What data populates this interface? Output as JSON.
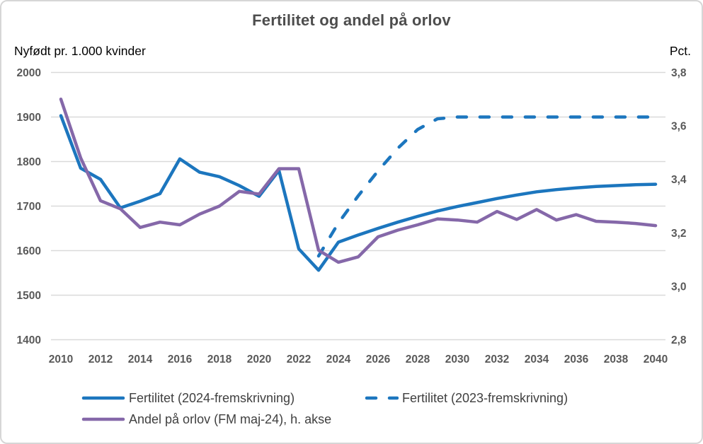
{
  "title": "Fertilitet og andel på orlov",
  "left_axis_header": "Nyfødt pr. 1.000 kvinder",
  "right_axis_header": "Pct.",
  "colors": {
    "blue": "#1c76be",
    "purple": "#8568a9",
    "grid": "#d9d9d9",
    "tick_text": "#595959",
    "title_text": "#4d4d4d",
    "legend_text": "#404040"
  },
  "chart_data": {
    "type": "line",
    "title": "Fertilitet og andel på orlov",
    "x": [
      2010,
      2011,
      2012,
      2013,
      2014,
      2015,
      2016,
      2017,
      2018,
      2019,
      2020,
      2021,
      2022,
      2023,
      2024,
      2025,
      2026,
      2027,
      2028,
      2029,
      2030,
      2031,
      2032,
      2033,
      2034,
      2035,
      2036,
      2037,
      2038,
      2039,
      2040
    ],
    "x_tick_labels": [
      "2010",
      "2012",
      "2014",
      "2016",
      "2018",
      "2020",
      "2022",
      "2024",
      "2026",
      "2028",
      "2030",
      "2032",
      "2034",
      "2036",
      "2038",
      "2040"
    ],
    "left_axis": {
      "label": "Nyfødt pr. 1.000 kvinder",
      "range": [
        1400,
        2000
      ],
      "ticks": [
        "2000",
        "1900",
        "1800",
        "1700",
        "1600",
        "1500",
        "1400"
      ]
    },
    "right_axis": {
      "label": "Pct.",
      "range": [
        2.8,
        3.8
      ],
      "ticks": [
        "3,8",
        "3,6",
        "3,4",
        "3,2",
        "3,0",
        "2,8"
      ]
    },
    "grid": true,
    "legend_position": "bottom",
    "series": [
      {
        "name": "Fertilitet (2024-fremskrivning)",
        "axis": "left",
        "style": "solid",
        "color": "#1c76be",
        "values": [
          1903,
          1785,
          1760,
          1696,
          1711,
          1728,
          1806,
          1776,
          1766,
          1746,
          1722,
          1780,
          1604,
          1556,
          1619,
          1635,
          1650,
          1664,
          1677,
          1689,
          1699,
          1708,
          1717,
          1725,
          1732,
          1737,
          1741,
          1744,
          1746,
          1748,
          1749
        ]
      },
      {
        "name": "Fertilitet (2023-fremskrivning)",
        "axis": "left",
        "style": "dashed",
        "color": "#1c76be",
        "values": [
          null,
          null,
          null,
          null,
          null,
          null,
          null,
          null,
          null,
          null,
          null,
          null,
          null,
          1588,
          1662,
          1723,
          1779,
          1830,
          1872,
          1896,
          1900,
          1900,
          1900,
          1900,
          1900,
          1900,
          1900,
          1900,
          1900,
          1900,
          1900
        ]
      },
      {
        "name": "Andel på orlov (FM maj-24), h. akse",
        "axis": "right",
        "style": "solid",
        "color": "#8568a9",
        "values": [
          3.7,
          3.48,
          3.32,
          3.29,
          3.22,
          3.24,
          3.23,
          3.27,
          3.3,
          3.355,
          3.345,
          3.44,
          3.44,
          3.135,
          3.09,
          3.11,
          3.185,
          3.21,
          3.23,
          3.252,
          3.248,
          3.24,
          3.28,
          3.25,
          3.287,
          3.248,
          3.268,
          3.243,
          3.24,
          3.235,
          3.227
        ]
      }
    ]
  }
}
